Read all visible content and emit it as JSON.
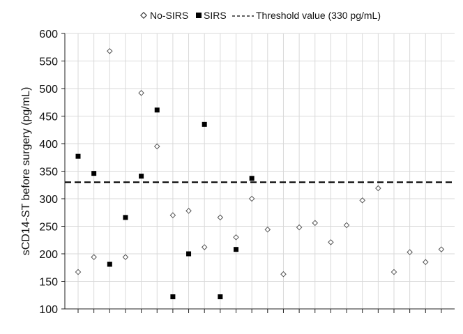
{
  "chart_data": {
    "type": "scatter",
    "title": "",
    "xlabel": "",
    "ylabel": "sCD14-ST before surgery (pg/mL)",
    "ylim": [
      100,
      600
    ],
    "yticks": [
      100,
      150,
      200,
      250,
      300,
      350,
      400,
      450,
      500,
      550,
      600
    ],
    "x_count": 24,
    "grid": {
      "vertical": true,
      "horizontal": true
    },
    "legend_position": "top",
    "threshold": {
      "value": 330,
      "label": "Threshold value (330 pg/mL)"
    },
    "series": [
      {
        "name": "No-SIRS",
        "marker": "open-diamond",
        "color": "#555555",
        "points": [
          {
            "x": 1,
            "y": 167
          },
          {
            "x": 2,
            "y": 194
          },
          {
            "x": 3,
            "y": 568
          },
          {
            "x": 4,
            "y": 194
          },
          {
            "x": 5,
            "y": 492
          },
          {
            "x": 6,
            "y": 395
          },
          {
            "x": 7,
            "y": 270
          },
          {
            "x": 8,
            "y": 278
          },
          {
            "x": 9,
            "y": 212
          },
          {
            "x": 10,
            "y": 266
          },
          {
            "x": 11,
            "y": 230
          },
          {
            "x": 12,
            "y": 300
          },
          {
            "x": 13,
            "y": 244
          },
          {
            "x": 14,
            "y": 163
          },
          {
            "x": 15,
            "y": 248
          },
          {
            "x": 16,
            "y": 256
          },
          {
            "x": 17,
            "y": 221
          },
          {
            "x": 18,
            "y": 252
          },
          {
            "x": 19,
            "y": 297
          },
          {
            "x": 20,
            "y": 319
          },
          {
            "x": 21,
            "y": 167
          },
          {
            "x": 22,
            "y": 203
          },
          {
            "x": 23,
            "y": 185
          },
          {
            "x": 24,
            "y": 208
          }
        ]
      },
      {
        "name": "SIRS",
        "marker": "filled-square",
        "color": "#000000",
        "points": [
          {
            "x": 1,
            "y": 377
          },
          {
            "x": 2,
            "y": 346
          },
          {
            "x": 3,
            "y": 181
          },
          {
            "x": 4,
            "y": 266
          },
          {
            "x": 5,
            "y": 341
          },
          {
            "x": 6,
            "y": 461
          },
          {
            "x": 7,
            "y": 122
          },
          {
            "x": 8,
            "y": 200
          },
          {
            "x": 9,
            "y": 435
          },
          {
            "x": 10,
            "y": 122
          },
          {
            "x": 11,
            "y": 208
          },
          {
            "x": 12,
            "y": 337
          }
        ]
      }
    ]
  }
}
